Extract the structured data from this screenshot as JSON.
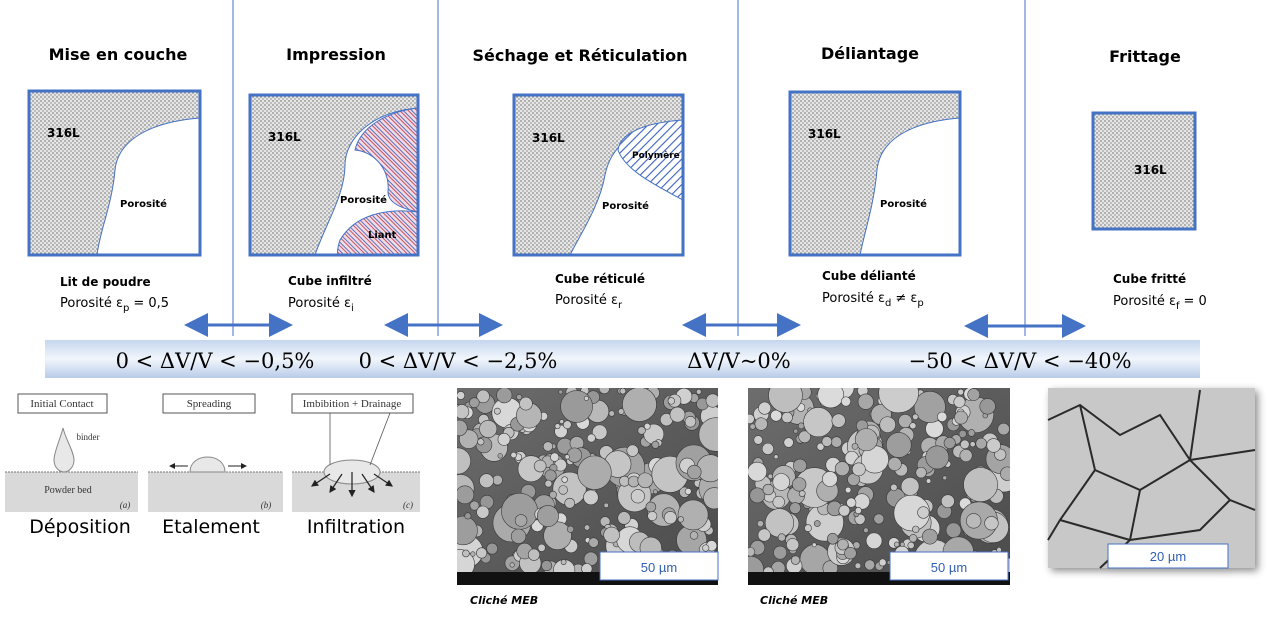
{
  "stages": [
    {
      "title": "Mise en couche",
      "material": "316L",
      "pore": "Porosité",
      "caption": "Lit de poudre",
      "porosity": [
        "Porosité ε",
        "p",
        "= 0,5"
      ]
    },
    {
      "title": "Impression",
      "material": "316L",
      "pore": "Porosité",
      "binder": "Liant",
      "caption": "Cube infiltré",
      "porosity": [
        "Porosité ε",
        "i"
      ]
    },
    {
      "title": "Séchage et Réticulation",
      "material": "316L",
      "pore": "Porosité",
      "polymer": "Polymère",
      "caption": "Cube réticulé",
      "porosity": [
        "Porosité ε",
        "r"
      ]
    },
    {
      "title": "Déliantage",
      "material": "316L",
      "pore": "Porosité",
      "caption": "Cube délianté",
      "porosity": [
        "Porosité ε",
        "d",
        "≠ ε",
        "p"
      ]
    },
    {
      "title": "Frittage",
      "material": "316L",
      "caption": "Cube fritté",
      "porosity": [
        "Porosité ε",
        "f",
        "= 0"
      ]
    }
  ],
  "volume_changes": [
    "0 < ΔV/V < −0,5%",
    "0 < ΔV/V < −2,5%",
    "ΔV/V~0%",
    "−50 < ΔV/V < −40%"
  ],
  "wetting": [
    {
      "title": "Initial Contact",
      "drop": "binder",
      "bed": "Powder bed",
      "tag": "(a)",
      "caption": "Déposition"
    },
    {
      "title": "Spreading",
      "tag": "(b)",
      "caption": "Etalement"
    },
    {
      "title": "Imbibition + Drainage",
      "tag": "(c)",
      "caption": "Infiltration"
    }
  ],
  "micrographs": [
    {
      "scale": "50 µm",
      "caption": "Cliché MEB"
    },
    {
      "scale": "50 µm",
      "caption": "Cliché MEB"
    },
    {
      "scale": "20 µm"
    }
  ]
}
